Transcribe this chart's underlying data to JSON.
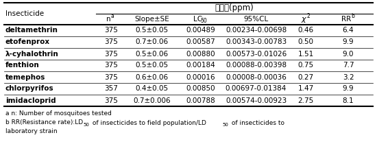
{
  "title": "살충력(ppm)",
  "col_label": "Insecticide",
  "insecticides": [
    "deltamethrin",
    "etofenprox",
    "λ-cyhalothrin",
    "fenthion",
    "temephos",
    "chlorpyrifos",
    "imidacloprid"
  ],
  "data": [
    [
      "375",
      "0.5±0.05",
      "0.00489",
      "0.00234-0.00698",
      "0.46",
      "6.4"
    ],
    [
      "375",
      "0.7±0.06",
      "0.00587",
      "0.00343-0.00783",
      "0.50",
      "9.9"
    ],
    [
      "375",
      "0.5±0.06",
      "0.00880",
      "0.00573-0.01026",
      "1.51",
      "9.0"
    ],
    [
      "375",
      "0.5±0.05",
      "0.00184",
      "0.00088-0.00398",
      "0.75",
      "7.7"
    ],
    [
      "375",
      "0.6±0.06",
      "0.00016",
      "0.00008-0.00036",
      "0.27",
      "3.2"
    ],
    [
      "357",
      "0.4±0.05",
      "0.00850",
      "0.00697-0.01384",
      "1.47",
      "9.9"
    ],
    [
      "375",
      "0.7±0.006",
      "0.00788",
      "0.00574-0.00923",
      "2.75",
      "8.1"
    ]
  ],
  "footnote_a": "a n: Number of mosquitoes tested",
  "footnote_b1": "b RR(Resistance rate):LD",
  "footnote_b2": " of insecticides to field population/LD",
  "footnote_b3": " of insecticides to",
  "footnote_b4": "laboratory strain",
  "bg_color": "#ffffff"
}
